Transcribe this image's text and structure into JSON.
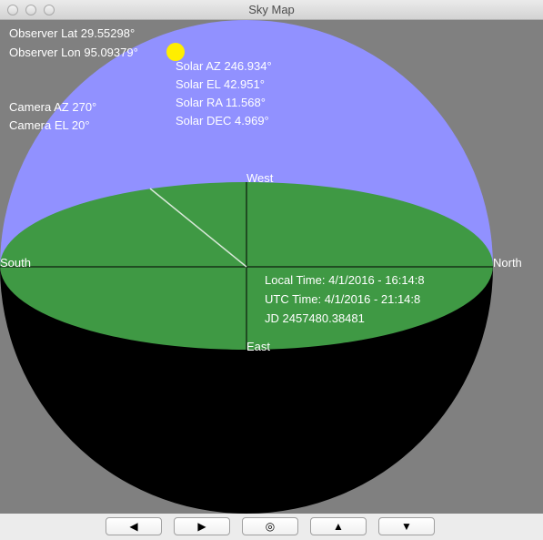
{
  "window": {
    "title": "Sky Map"
  },
  "observer": {
    "lat": "Observer Lat 29.55298°",
    "lon": "Observer Lon 95.09379°"
  },
  "camera": {
    "az": "Camera AZ 270°",
    "el": "Camera EL 20°"
  },
  "solar": {
    "az": "Solar AZ 246.934°",
    "el": "Solar EL 42.951°",
    "ra": "Solar RA 11.568°",
    "dec": "Solar DEC 4.969°"
  },
  "time": {
    "local": "Local Time: 4/1/2016 - 16:14:8",
    "utc": "UTC Time: 4/1/2016 - 21:14:8",
    "jd": "JD 2457480.38481"
  },
  "directions": {
    "west": "West",
    "east": "East",
    "south": "South",
    "north": "North"
  },
  "colors": {
    "sky": "#9191ff",
    "ground": "#3f9944",
    "below_horizon": "#000000",
    "background": "#808080",
    "sun": "#ffee00"
  },
  "buttons": {
    "left": "◀",
    "right": "▶",
    "center": "◎",
    "up": "▲",
    "down": "▼"
  }
}
